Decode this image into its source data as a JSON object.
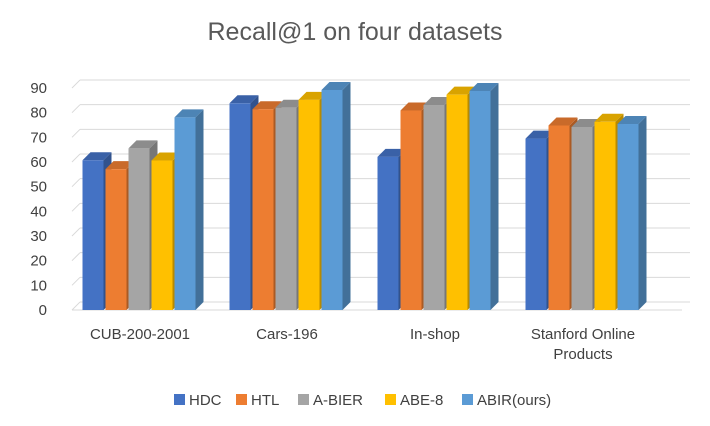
{
  "chart_data": {
    "type": "bar",
    "title": "Recall@1 on four datasets",
    "xlabel": "",
    "ylabel": "",
    "ylim": [
      0,
      90
    ],
    "yticks": [
      0,
      10,
      20,
      30,
      40,
      50,
      60,
      70,
      80,
      90
    ],
    "grid": true,
    "legend_position": "bottom",
    "style": "3d-clustered-column",
    "categories": [
      [
        "CUB-200-2001"
      ],
      [
        "Cars-196"
      ],
      [
        "In-shop"
      ],
      [
        "Stanford Online",
        "Products"
      ]
    ],
    "series": [
      {
        "name": "HDC",
        "color": "#4472c4",
        "values": [
          60.7,
          83.8,
          62.1,
          69.5
        ]
      },
      {
        "name": "HTL",
        "color": "#ed7d31",
        "values": [
          57.1,
          81.4,
          80.9,
          74.8
        ]
      },
      {
        "name": "A-BIER",
        "color": "#a5a5a5",
        "values": [
          65.5,
          82.0,
          83.1,
          74.2
        ]
      },
      {
        "name": "ABE-8",
        "color": "#ffc000",
        "values": [
          60.6,
          85.2,
          87.3,
          76.3
        ]
      },
      {
        "name": "ABIR(ours)",
        "color": "#5b9bd5",
        "values": [
          78.1,
          89.2,
          88.8,
          75.4
        ]
      }
    ]
  }
}
